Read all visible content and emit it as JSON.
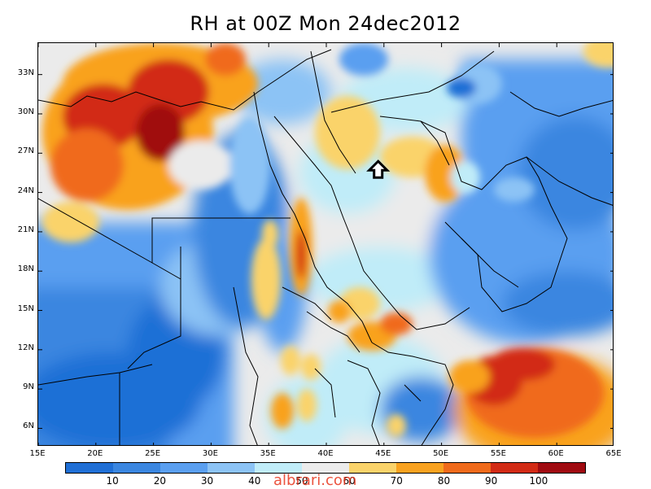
{
  "title": "RH at 00Z Mon 24dec2012",
  "watermark": "albrari.com",
  "lat_ticks": [
    {
      "label": "33N",
      "value": 33
    },
    {
      "label": "30N",
      "value": 30
    },
    {
      "label": "27N",
      "value": 27
    },
    {
      "label": "24N",
      "value": 24
    },
    {
      "label": "21N",
      "value": 21
    },
    {
      "label": "18N",
      "value": 18
    },
    {
      "label": "15N",
      "value": 15
    },
    {
      "label": "12N",
      "value": 12
    },
    {
      "label": "9N",
      "value": 9
    },
    {
      "label": "6N",
      "value": 6
    }
  ],
  "lon_ticks": [
    {
      "label": "15E",
      "value": 15
    },
    {
      "label": "20E",
      "value": 20
    },
    {
      "label": "25E",
      "value": 25
    },
    {
      "label": "30E",
      "value": 30
    },
    {
      "label": "35E",
      "value": 35
    },
    {
      "label": "40E",
      "value": 40
    },
    {
      "label": "45E",
      "value": 45
    },
    {
      "label": "50E",
      "value": 50
    },
    {
      "label": "55E",
      "value": 55
    },
    {
      "label": "60E",
      "value": 60
    },
    {
      "label": "65E",
      "value": 65
    }
  ],
  "colorbar": {
    "labels": [
      "10",
      "20",
      "30",
      "40",
      "50",
      "60",
      "70",
      "80",
      "90",
      "100"
    ],
    "colors": [
      "#1f6fd6",
      "#3a86e0",
      "#5a9ff0",
      "#8cc3f5",
      "#c0ecf8",
      "#ebebeb",
      "#fad36a",
      "#f9a21f",
      "#f06a1a",
      "#d22a14",
      "#a00a10"
    ]
  },
  "map": {
    "lon_range": [
      15,
      65
    ],
    "lat_range": [
      4.6,
      35.4
    ],
    "marker_icon": "house-arrow-icon",
    "marker_lon": 44.5,
    "marker_lat": 25.7
  }
}
